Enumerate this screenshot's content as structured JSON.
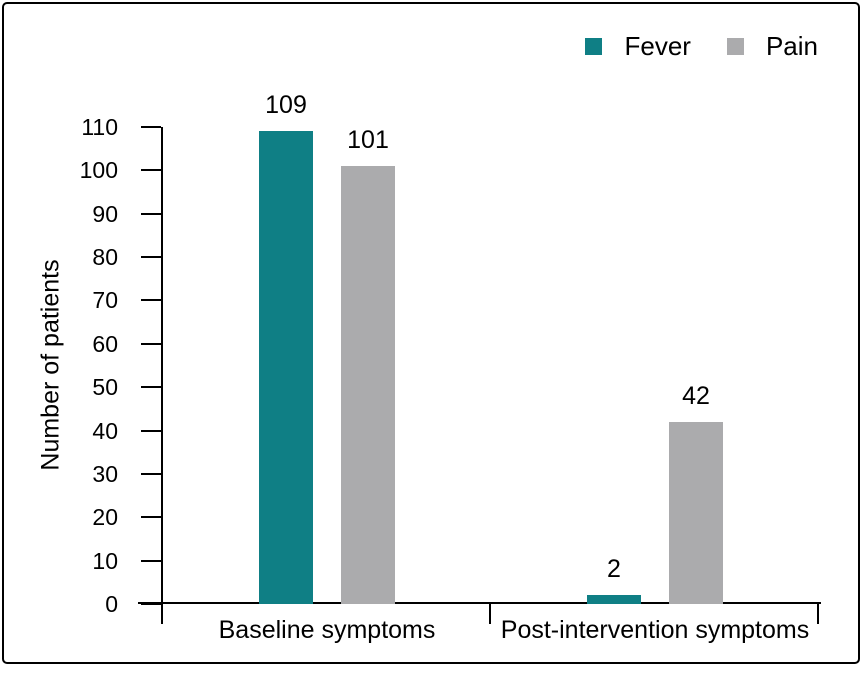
{
  "frame": {
    "background": "#ffffff",
    "border_color": "#000000"
  },
  "chart_data": {
    "type": "bar",
    "title": "",
    "categories": [
      "Baseline symptoms",
      "Post-intervention symptoms"
    ],
    "series": [
      {
        "name": "Fever",
        "color": "#0F7F85",
        "values": [
          109,
          2
        ]
      },
      {
        "name": "Pain",
        "color": "#ABABAD",
        "values": [
          101,
          42
        ]
      }
    ],
    "xlabel": "",
    "ylabel": "Number of patients",
    "ylim": [
      0,
      110
    ],
    "yticks": [
      0,
      10,
      20,
      30,
      40,
      50,
      60,
      70,
      80,
      90,
      100,
      110
    ],
    "grid": false,
    "legend_position": "top-right",
    "data_labels": true,
    "axis_color": "#000000",
    "text_color": "#000000"
  }
}
